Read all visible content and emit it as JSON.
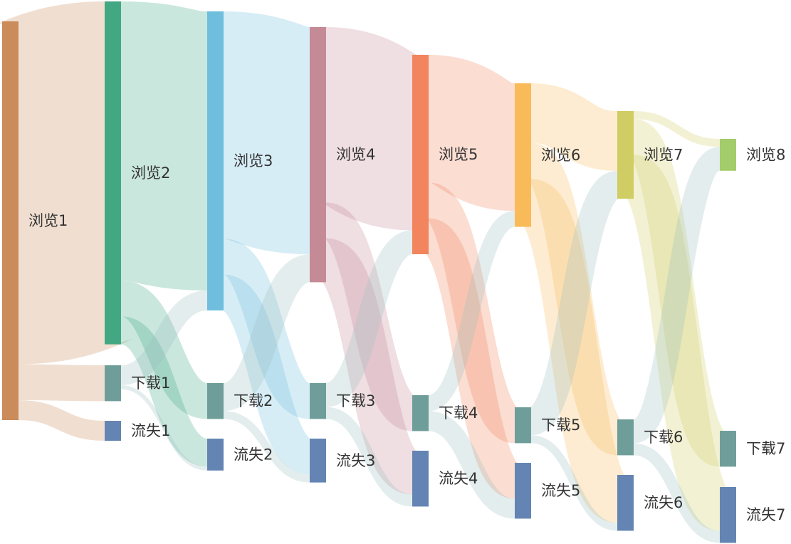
{
  "chart_data": {
    "type": "sankey",
    "title": "",
    "nodes": [
      {
        "id": "浏览1",
        "label": "浏览1",
        "color": "#c98c5a"
      },
      {
        "id": "浏览2",
        "label": "浏览2",
        "color": "#42a884"
      },
      {
        "id": "下载1",
        "label": "下载1",
        "color": "#6f9e9a"
      },
      {
        "id": "流失1",
        "label": "流失1",
        "color": "#6485b3"
      },
      {
        "id": "浏览3",
        "label": "浏览3",
        "color": "#6fbedd"
      },
      {
        "id": "下载2",
        "label": "下载2",
        "color": "#6f9e9a"
      },
      {
        "id": "流失2",
        "label": "流失2",
        "color": "#6485b3"
      },
      {
        "id": "浏览4",
        "label": "浏览4",
        "color": "#c48a96"
      },
      {
        "id": "下载3",
        "label": "下载3",
        "color": "#6f9e9a"
      },
      {
        "id": "流失3",
        "label": "流失3",
        "color": "#6485b3"
      },
      {
        "id": "浏览5",
        "label": "浏览5",
        "color": "#f2845e"
      },
      {
        "id": "下载4",
        "label": "下载4",
        "color": "#6f9e9a"
      },
      {
        "id": "流失4",
        "label": "流失4",
        "color": "#6485b3"
      },
      {
        "id": "浏览6",
        "label": "浏览6",
        "color": "#f9bb5a"
      },
      {
        "id": "下载5",
        "label": "下载5",
        "color": "#6f9e9a"
      },
      {
        "id": "流失5",
        "label": "流失5",
        "color": "#6485b3"
      },
      {
        "id": "浏览7",
        "label": "浏览7",
        "color": "#cfcd63"
      },
      {
        "id": "下载6",
        "label": "下载6",
        "color": "#6f9e9a"
      },
      {
        "id": "流失6",
        "label": "流失6",
        "color": "#6485b3"
      },
      {
        "id": "浏览8",
        "label": "浏览8",
        "color": "#a3cc6a"
      },
      {
        "id": "下载7",
        "label": "下载7",
        "color": "#6f9e9a"
      },
      {
        "id": "流失7",
        "label": "流失7",
        "color": "#6485b3"
      }
    ],
    "links": [
      {
        "source": "浏览1",
        "target": "浏览2",
        "value": 86
      },
      {
        "source": "浏览1",
        "target": "下载1",
        "value": 9
      },
      {
        "source": "浏览1",
        "target": "流失1",
        "value": 5
      },
      {
        "source": "浏览2",
        "target": "浏览3",
        "value": 70
      },
      {
        "source": "浏览2",
        "target": "下载2",
        "value": 9
      },
      {
        "source": "浏览2",
        "target": "流失2",
        "value": 7
      },
      {
        "source": "下载1",
        "target": "浏览3",
        "value": 5
      },
      {
        "source": "下载1",
        "target": "流失2",
        "value": 1
      },
      {
        "source": "浏览3",
        "target": "浏览4",
        "value": 57
      },
      {
        "source": "浏览3",
        "target": "下载3",
        "value": 9
      },
      {
        "source": "浏览3",
        "target": "流失3",
        "value": 9
      },
      {
        "source": "下载2",
        "target": "浏览4",
        "value": 7
      },
      {
        "source": "下载2",
        "target": "流失3",
        "value": 2
      },
      {
        "source": "浏览4",
        "target": "浏览5",
        "value": 44
      },
      {
        "source": "浏览4",
        "target": "下载4",
        "value": 9
      },
      {
        "source": "浏览4",
        "target": "流失4",
        "value": 11
      },
      {
        "source": "下载3",
        "target": "浏览5",
        "value": 6
      },
      {
        "source": "下载3",
        "target": "流失4",
        "value": 3
      },
      {
        "source": "浏览5",
        "target": "浏览6",
        "value": 32
      },
      {
        "source": "浏览5",
        "target": "下载5",
        "value": 9
      },
      {
        "source": "浏览5",
        "target": "流失5",
        "value": 9
      },
      {
        "source": "下载4",
        "target": "浏览6",
        "value": 4
      },
      {
        "source": "下载4",
        "target": "流失5",
        "value": 5
      },
      {
        "source": "浏览6",
        "target": "浏览7",
        "value": 15
      },
      {
        "source": "浏览6",
        "target": "下载6",
        "value": 9
      },
      {
        "source": "浏览6",
        "target": "流失6",
        "value": 12
      },
      {
        "source": "下载5",
        "target": "浏览7",
        "value": 7
      },
      {
        "source": "下载5",
        "target": "流失6",
        "value": 2
      },
      {
        "source": "浏览7",
        "target": "浏览8",
        "value": 2
      },
      {
        "source": "浏览7",
        "target": "下载7",
        "value": 9
      },
      {
        "source": "浏览7",
        "target": "流失7",
        "value": 11
      },
      {
        "source": "下载6",
        "target": "浏览8",
        "value": 6
      },
      {
        "source": "下载6",
        "target": "流失7",
        "value": 3
      }
    ]
  }
}
